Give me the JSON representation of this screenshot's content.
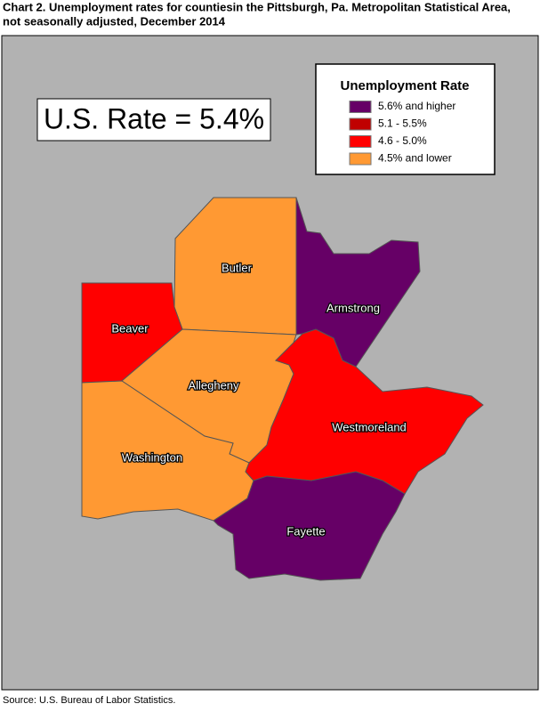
{
  "title": [
    "Chart 2. Unemployment rates for countiesin the Pittsburgh, Pa. Metropolitan Statistical Area,",
    "not seasonally adjusted, December 2014"
  ],
  "us_rate": "U.S. Rate = 5.4%",
  "legend": {
    "title": "Unemployment Rate",
    "items": [
      {
        "label": "5.6% and higher",
        "color": "#660066"
      },
      {
        "label": "5.1 - 5.5%",
        "color": "#c00000"
      },
      {
        "label": "4.6 - 5.0%",
        "color": "#ff0000"
      },
      {
        "label": "4.5% and lower",
        "color": "#ff9933"
      }
    ]
  },
  "counties": [
    {
      "name": "Butler",
      "class": 3
    },
    {
      "name": "Beaver",
      "class": 2
    },
    {
      "name": "Allegheny",
      "class": 3
    },
    {
      "name": "Washington",
      "class": 3
    },
    {
      "name": "Armstrong",
      "class": 0
    },
    {
      "name": "Westmoreland",
      "class": 2
    },
    {
      "name": "Fayette",
      "class": 0
    }
  ],
  "source": "Source: U.S. Bureau of Labor Statistics."
}
